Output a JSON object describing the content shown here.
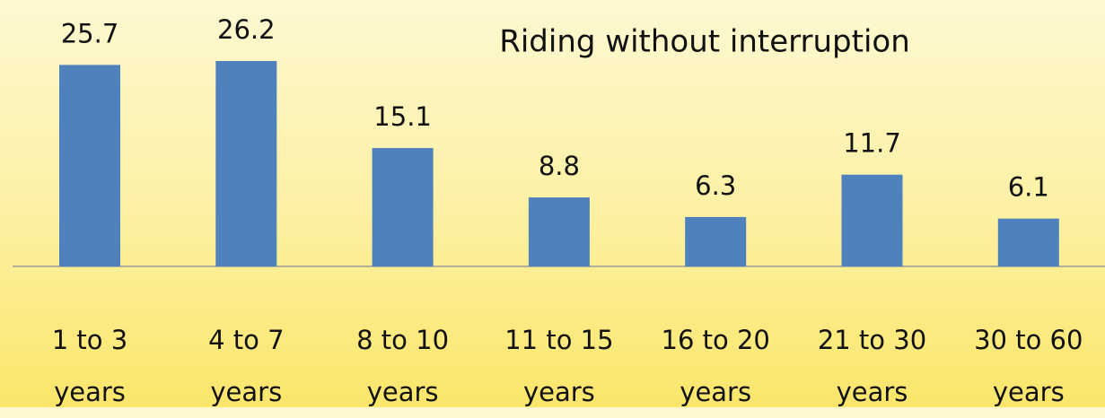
{
  "chart_data": {
    "type": "bar",
    "title": "Riding without interruption",
    "categories": [
      "1 to 3 years",
      "4 to 7 years",
      "8 to 10 years",
      "11 to 15 years",
      "16 to 20 years",
      "21 to 30 years",
      "30 to 60 years"
    ],
    "values": [
      25.7,
      26.2,
      15.1,
      8.8,
      6.3,
      11.7,
      6.1
    ],
    "color": "#4f81bd"
  }
}
